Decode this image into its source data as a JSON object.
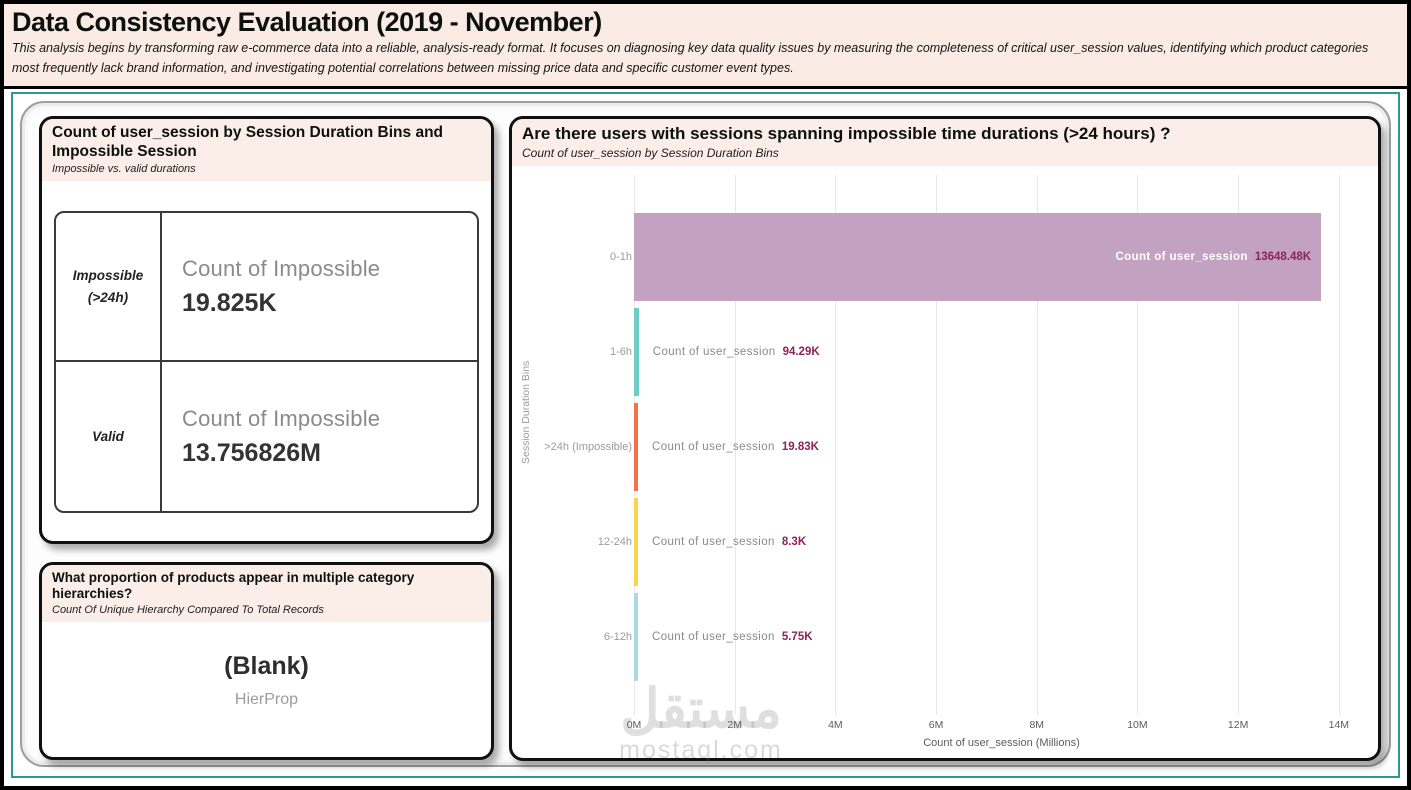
{
  "page": {
    "title": "Data Consistency Evaluation (2019 - November)",
    "subtitle": "This analysis begins by transforming raw e-commerce data into a reliable, analysis-ready format. It focuses on diagnosing key data quality issues by measuring the completeness of critical user_session values, identifying which product categories most frequently lack brand information, and investigating potential correlations between missing price data and specific customer event types."
  },
  "colors": {
    "accent_teal": "#2a9a90",
    "header_pink": "#faebe5",
    "panel_header_pink": "#fbeee9",
    "value_maroon": "#8b2459"
  },
  "panel_durations": {
    "title": "Count of user_session by Session Duration Bins and Impossible Session",
    "subtitle": "Impossible vs. valid durations",
    "rows": [
      {
        "label": "Impossible (>24h)",
        "card_label": "Count of Impossible",
        "value": "19.825K"
      },
      {
        "label": "Valid",
        "card_label": "Count of Impossible",
        "value": "13.756826M"
      }
    ]
  },
  "panel_hierarchy": {
    "title": "What proportion of products appear in multiple category hierarchies?",
    "subtitle": "Count Of Unique Hierarchy Compared To Total Records",
    "value": "(Blank)",
    "value_label": "HierProp"
  },
  "chart_panel": {
    "title": "Are there users with sessions spanning impossible time durations (>24 hours) ?",
    "subtitle": "Count of user_session by Session Duration Bins"
  },
  "chart_data": {
    "type": "bar",
    "orientation": "horizontal",
    "title": "Are there users with sessions spanning impossible time durations (>24 hours) ?",
    "subtitle": "Count of user_session by Session Duration Bins",
    "categories": [
      "0-1h",
      "1-6h",
      ">24h (Impossible)",
      "12-24h",
      "6-12h"
    ],
    "series_label": "Count of user_session",
    "values_thousands": [
      13648.48,
      94.29,
      19.83,
      8.3,
      5.75
    ],
    "value_labels": [
      "13648.48K",
      "94.29K",
      "19.83K",
      "8.3K",
      "5.75K"
    ],
    "bar_colors": [
      "#c3a1c0",
      "#6fccc5",
      "#f4714b",
      "#fbd44c",
      "#a9d8e6"
    ],
    "xlabel": "Count of user_session (Millions)",
    "ylabel": "Session Duration Bins",
    "x_ticks": [
      "0M",
      "2M",
      "4M",
      "6M",
      "8M",
      "10M",
      "12M",
      "14M"
    ],
    "x_tick_values_millions": [
      0,
      2,
      4,
      6,
      8,
      10,
      12,
      14
    ],
    "xlim_millions": [
      0,
      14.6
    ],
    "grid": true,
    "legend": false
  },
  "watermark": {
    "text": "مستقل",
    "subtext": "mostaql.com"
  }
}
